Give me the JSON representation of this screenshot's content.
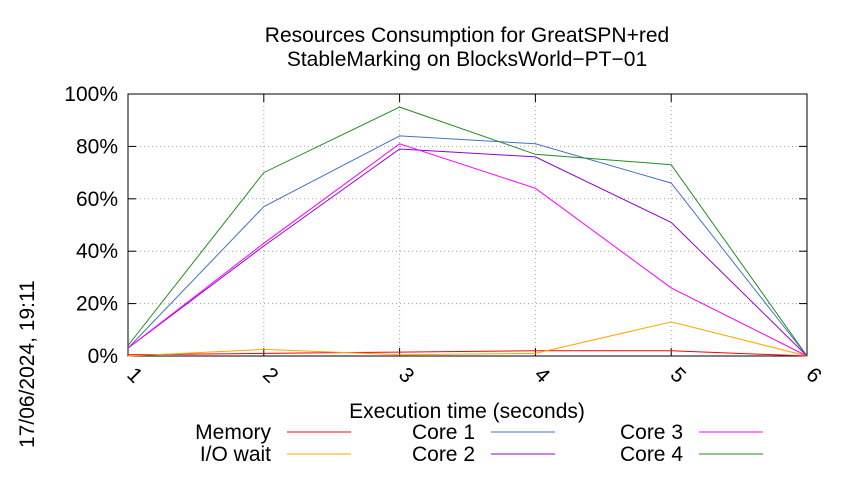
{
  "chart_data": {
    "type": "line",
    "title": "Resources Consumption for GreatSPN+red",
    "subtitle": "StableMarking on BlocksWorld−PT−01",
    "xlabel": "Execution time (seconds)",
    "ylabel": "",
    "side_label": "17/06/2024, 19:11",
    "x": [
      1,
      2,
      3,
      4,
      5,
      6
    ],
    "x_tick_labels": [
      "1",
      "2",
      "3",
      "4",
      "5",
      "6"
    ],
    "xlim": [
      1,
      6
    ],
    "ylim": [
      0,
      100
    ],
    "y_ticks": [
      0,
      20,
      40,
      60,
      80,
      100
    ],
    "y_tick_labels": [
      "0%",
      "20%",
      "40%",
      "60%",
      "80%",
      "100%"
    ],
    "grid": true,
    "legend_position": "bottom",
    "series": [
      {
        "name": "Memory",
        "color": "#ff0000",
        "values": [
          0.5,
          1.0,
          1.5,
          2.0,
          2.0,
          0
        ]
      },
      {
        "name": "I/O wait",
        "color": "#ffa500",
        "values": [
          0,
          2.5,
          0.5,
          1.0,
          13.0,
          0
        ]
      },
      {
        "name": "Core 1",
        "color": "#4472c4",
        "values": [
          3,
          57,
          84,
          81,
          66,
          0
        ]
      },
      {
        "name": "Core 2",
        "color": "#9400d3",
        "values": [
          3,
          42,
          79,
          76,
          51,
          0
        ]
      },
      {
        "name": "Core 3",
        "color": "#ff00ff",
        "values": [
          3,
          43,
          81,
          64,
          26,
          0
        ]
      },
      {
        "name": "Core 4",
        "color": "#228b22",
        "values": [
          4,
          70,
          95,
          77,
          73,
          0
        ]
      }
    ]
  }
}
